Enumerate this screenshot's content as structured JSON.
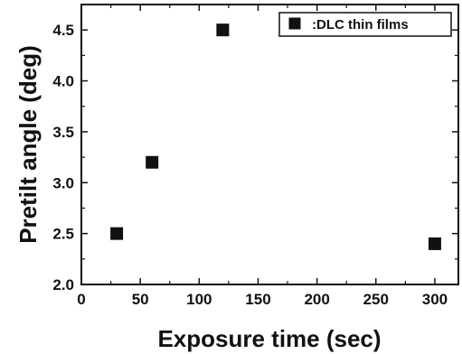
{
  "chart_data": {
    "type": "scatter",
    "xlabel": "Exposure time (sec)",
    "ylabel": "Pretilt angle (deg)",
    "xlim": [
      0,
      320
    ],
    "ylim": [
      2.0,
      4.75
    ],
    "xticks": [
      "0",
      "50",
      "100",
      "150",
      "200",
      "250",
      "300"
    ],
    "yticks": [
      "2.0",
      "2.5",
      "3.0",
      "3.5",
      "4.0",
      "4.5"
    ],
    "legend_position": "top-right",
    "series": [
      {
        "name": ":DLC thin films",
        "marker": "square",
        "color": "#111111",
        "points": [
          {
            "x": 30,
            "y": 2.5
          },
          {
            "x": 60,
            "y": 3.2
          },
          {
            "x": 120,
            "y": 4.5
          },
          {
            "x": 300,
            "y": 2.4
          }
        ]
      }
    ]
  }
}
